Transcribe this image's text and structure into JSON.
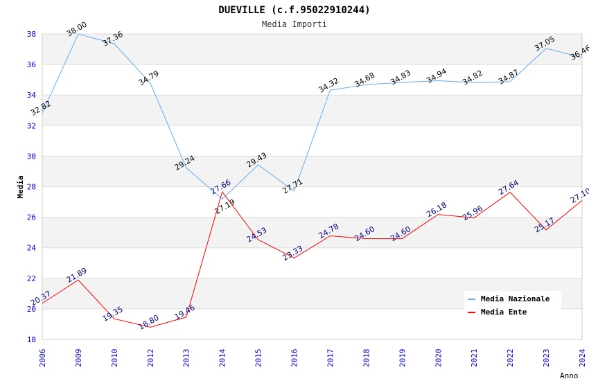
{
  "chart_data": {
    "type": "line",
    "title": "DUEVILLE (c.f.95022910244)",
    "subtitle": "Media Importi",
    "xlabel": "Anno",
    "ylabel": "Media",
    "ylim": [
      18,
      38
    ],
    "yticks": [
      "18",
      "20",
      "22",
      "24",
      "26",
      "28",
      "30",
      "32",
      "34",
      "36",
      "38"
    ],
    "categories": [
      "2006",
      "2009",
      "2010",
      "2012",
      "2013",
      "2014",
      "2015",
      "2016",
      "2017",
      "2018",
      "2019",
      "2020",
      "2021",
      "2022",
      "2023",
      "2024"
    ],
    "series": [
      {
        "name": "Media Nazionale",
        "color": "#66aaee",
        "label_color": "#000000",
        "values": [
          32.82,
          38.0,
          37.36,
          34.79,
          29.24,
          27.19,
          29.43,
          27.71,
          34.32,
          34.68,
          34.83,
          34.94,
          34.82,
          34.87,
          37.05,
          36.46
        ]
      },
      {
        "name": "Media Ente",
        "color": "#ff0000",
        "label_color": "#000080",
        "values": [
          20.37,
          21.89,
          19.35,
          18.8,
          19.46,
          27.66,
          24.53,
          23.33,
          24.78,
          24.6,
          24.6,
          26.18,
          25.96,
          27.64,
          25.17,
          27.1
        ]
      }
    ],
    "legend_position": "top-right",
    "grid": true
  }
}
